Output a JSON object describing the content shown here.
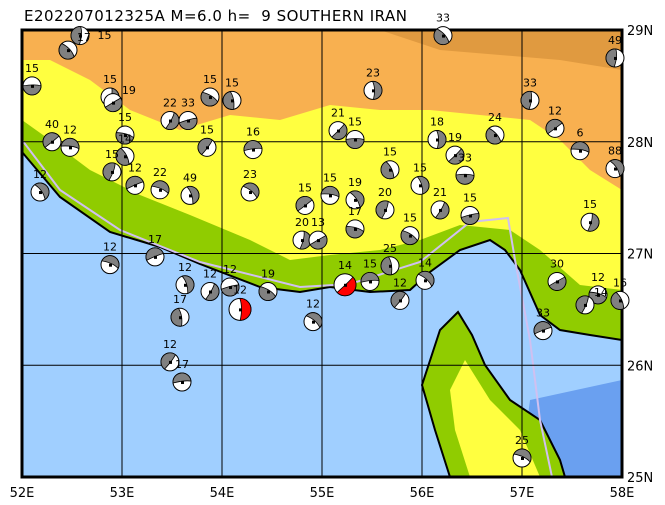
{
  "title": "E202207012325A M=6.0 h=  9 SOUTHERN IRAN",
  "map": {
    "lon_range": [
      52,
      58
    ],
    "lat_range": [
      25,
      29
    ],
    "lon_ticks": [
      "52E",
      "53E",
      "54E",
      "55E",
      "56E",
      "57E",
      "58E"
    ],
    "lat_ticks": [
      "29N",
      "28N",
      "27N",
      "26N",
      "25N"
    ],
    "grid": true,
    "colors": {
      "sea": "#a0cfff",
      "deep_sea": "#6aa0f0",
      "lowland": "#90cc00",
      "midland": "#ffff40",
      "highland": "#f8b050",
      "mountain": "#e09a40",
      "border": "#d0c0f0",
      "mechanism_fill": "#808080",
      "main_event_fill": "#ff0000"
    }
  },
  "events": [
    {
      "lon": 52.1,
      "lat": 28.5,
      "depth": "15"
    },
    {
      "lon": 52.46,
      "lat": 28.82,
      "depth": "17"
    },
    {
      "lon": 52.58,
      "lat": 28.95,
      "depth": "15"
    },
    {
      "lon": 52.3,
      "lat": 28.0,
      "depth": "40"
    },
    {
      "lon": 52.48,
      "lat": 27.95,
      "depth": "12"
    },
    {
      "lon": 52.18,
      "lat": 27.55,
      "depth": "12"
    },
    {
      "lon": 52.88,
      "lat": 28.4,
      "depth": "15"
    },
    {
      "lon": 52.91,
      "lat": 28.35,
      "depth": "19"
    },
    {
      "lon": 53.03,
      "lat": 28.06,
      "depth": "15"
    },
    {
      "lon": 53.03,
      "lat": 27.87,
      "depth": "14"
    },
    {
      "lon": 52.9,
      "lat": 27.73,
      "depth": "15"
    },
    {
      "lon": 53.13,
      "lat": 27.61,
      "depth": "12"
    },
    {
      "lon": 53.38,
      "lat": 27.57,
      "depth": "22"
    },
    {
      "lon": 53.68,
      "lat": 27.52,
      "depth": "49"
    },
    {
      "lon": 53.48,
      "lat": 28.19,
      "depth": "22"
    },
    {
      "lon": 53.66,
      "lat": 28.19,
      "depth": "33"
    },
    {
      "lon": 53.88,
      "lat": 28.4,
      "depth": "15"
    },
    {
      "lon": 54.1,
      "lat": 28.37,
      "depth": "15"
    },
    {
      "lon": 53.85,
      "lat": 27.95,
      "depth": "15"
    },
    {
      "lon": 54.31,
      "lat": 27.93,
      "depth": "16"
    },
    {
      "lon": 54.28,
      "lat": 27.55,
      "depth": "23"
    },
    {
      "lon": 55.51,
      "lat": 28.46,
      "depth": "23"
    },
    {
      "lon": 55.16,
      "lat": 28.1,
      "depth": "21"
    },
    {
      "lon": 55.33,
      "lat": 28.02,
      "depth": "15"
    },
    {
      "lon": 56.21,
      "lat": 28.95,
      "depth": "33"
    },
    {
      "lon": 57.93,
      "lat": 28.75,
      "depth": "49"
    },
    {
      "lon": 54.83,
      "lat": 27.43,
      "depth": "15"
    },
    {
      "lon": 55.08,
      "lat": 27.52,
      "depth": "15"
    },
    {
      "lon": 55.33,
      "lat": 27.48,
      "depth": "19"
    },
    {
      "lon": 54.8,
      "lat": 27.12,
      "depth": "20"
    },
    {
      "lon": 54.96,
      "lat": 27.12,
      "depth": "13"
    },
    {
      "lon": 55.33,
      "lat": 27.22,
      "depth": "17"
    },
    {
      "lon": 55.68,
      "lat": 27.75,
      "depth": "15"
    },
    {
      "lon": 55.63,
      "lat": 27.39,
      "depth": "20"
    },
    {
      "lon": 53.33,
      "lat": 26.97,
      "depth": "17"
    },
    {
      "lon": 52.88,
      "lat": 26.9,
      "depth": "12"
    },
    {
      "lon": 53.63,
      "lat": 26.72,
      "depth": "12"
    },
    {
      "lon": 53.88,
      "lat": 26.66,
      "depth": "12"
    },
    {
      "lon": 54.08,
      "lat": 26.7,
      "depth": "12"
    },
    {
      "lon": 54.46,
      "lat": 26.66,
      "depth": "19"
    },
    {
      "lon": 53.58,
      "lat": 26.43,
      "depth": "17"
    },
    {
      "lon": 53.48,
      "lat": 26.03,
      "depth": "12"
    },
    {
      "lon": 53.6,
      "lat": 25.85,
      "depth": "17"
    },
    {
      "lon": 54.91,
      "lat": 26.39,
      "depth": "12"
    },
    {
      "lon": 56.15,
      "lat": 28.02,
      "depth": "18"
    },
    {
      "lon": 56.33,
      "lat": 27.88,
      "depth": "19"
    },
    {
      "lon": 56.43,
      "lat": 27.7,
      "depth": "33"
    },
    {
      "lon": 56.73,
      "lat": 28.06,
      "depth": "24"
    },
    {
      "lon": 57.08,
      "lat": 28.37,
      "depth": "33"
    },
    {
      "lon": 57.33,
      "lat": 28.12,
      "depth": "12"
    },
    {
      "lon": 57.58,
      "lat": 27.92,
      "depth": "6"
    },
    {
      "lon": 57.93,
      "lat": 27.76,
      "depth": "88"
    },
    {
      "lon": 57.68,
      "lat": 27.28,
      "depth": "15"
    },
    {
      "lon": 57.35,
      "lat": 26.75,
      "depth": "30"
    },
    {
      "lon": 57.76,
      "lat": 26.63,
      "depth": "12"
    },
    {
      "lon": 57.98,
      "lat": 26.58,
      "depth": "16"
    },
    {
      "lon": 57.63,
      "lat": 26.54,
      "depth": "14"
    },
    {
      "lon": 57.21,
      "lat": 26.31,
      "depth": "33"
    },
    {
      "lon": 57.0,
      "lat": 25.17,
      "depth": "25"
    },
    {
      "lon": 55.98,
      "lat": 27.61,
      "depth": "15"
    },
    {
      "lon": 56.18,
      "lat": 27.39,
      "depth": "21"
    },
    {
      "lon": 56.48,
      "lat": 27.34,
      "depth": "15"
    },
    {
      "lon": 55.88,
      "lat": 27.16,
      "depth": "15"
    },
    {
      "lon": 55.68,
      "lat": 26.89,
      "depth": "25"
    },
    {
      "lon": 55.78,
      "lat": 26.58,
      "depth": "12"
    },
    {
      "lon": 55.48,
      "lat": 26.75,
      "depth": "15"
    },
    {
      "lon": 56.03,
      "lat": 26.76,
      "depth": "14"
    },
    {
      "lon": 54.18,
      "lat": 26.5,
      "depth": "12",
      "main": true
    },
    {
      "lon": 55.23,
      "lat": 26.72,
      "depth": "14",
      "main": true
    }
  ]
}
